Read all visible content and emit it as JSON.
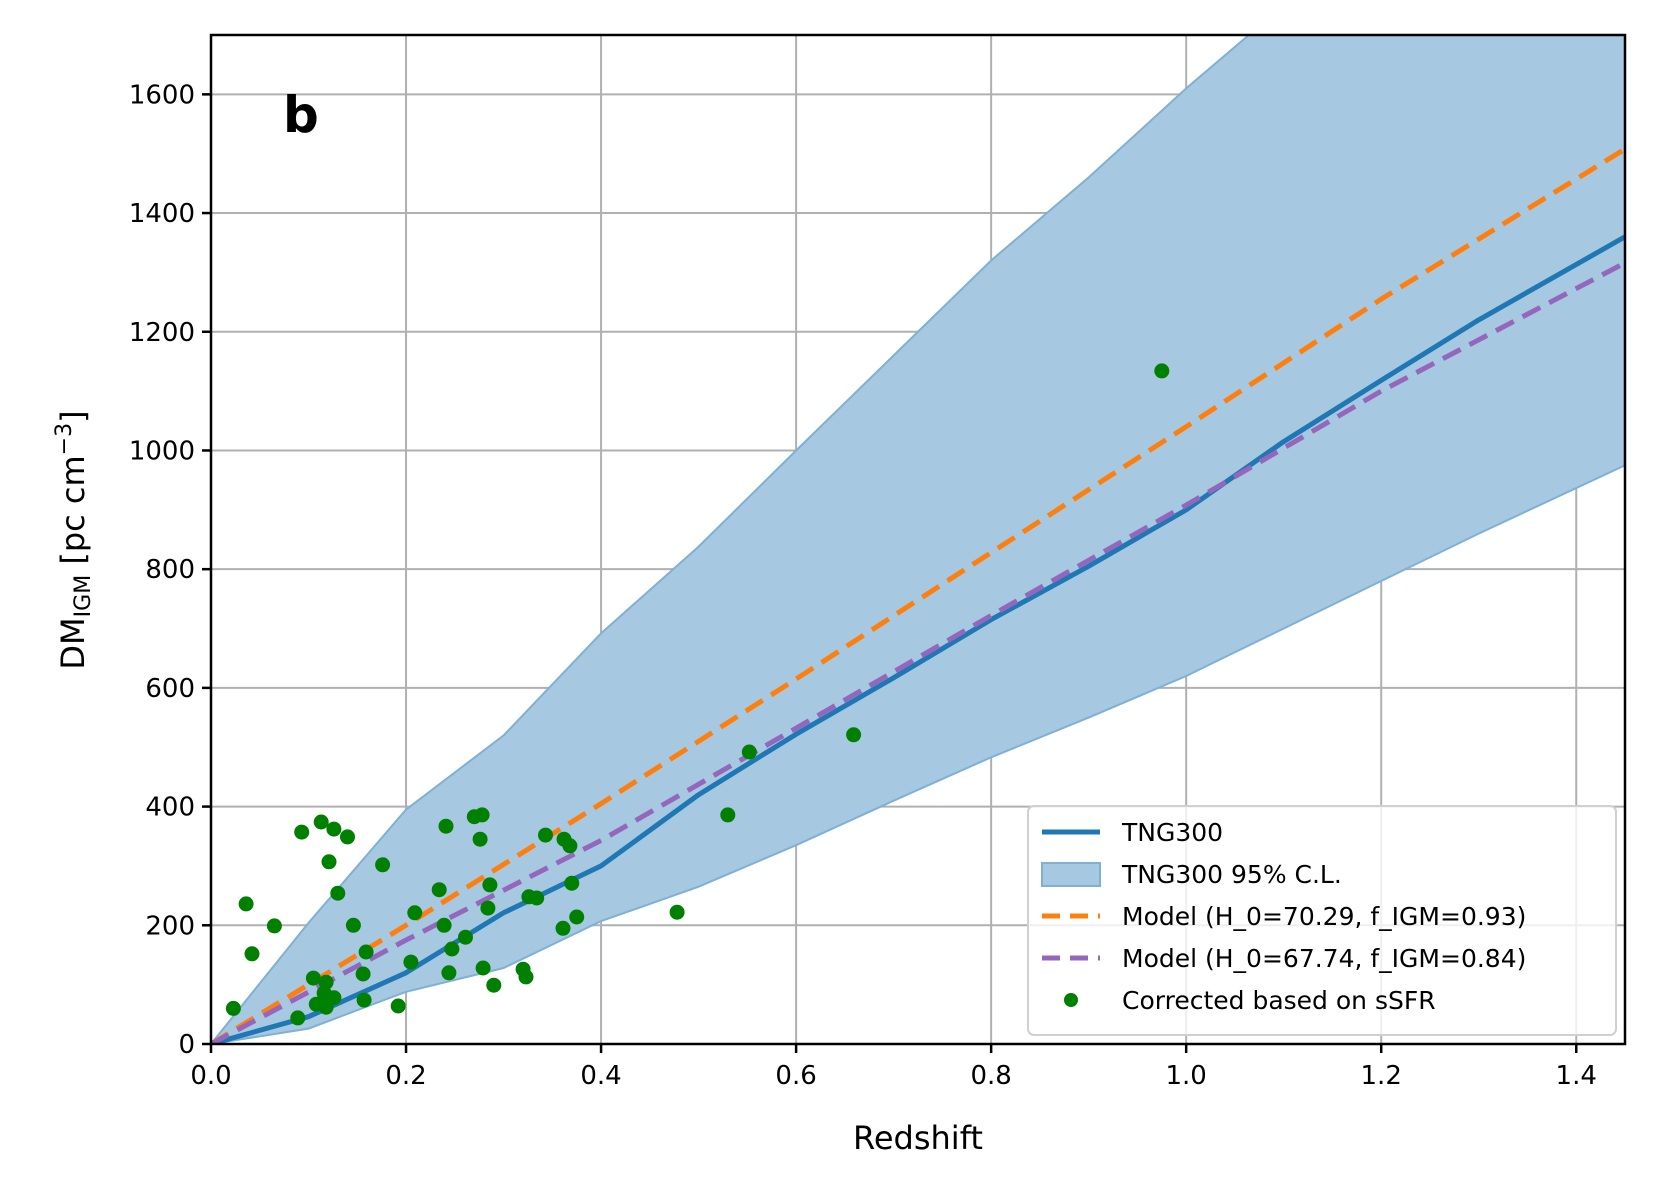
{
  "chart_data": {
    "type": "line",
    "panel_label": "b",
    "title": "",
    "xlabel": "Redshift",
    "ylabel_main": "DM",
    "ylabel_sub": "IGM",
    "ylabel_unit_pre": " [pc cm",
    "ylabel_unit_sup": "−3",
    "ylabel_unit_post": "]",
    "xlim": [
      0,
      1.45
    ],
    "ylim": [
      0,
      1700
    ],
    "xticks": [
      0.0,
      0.2,
      0.4,
      0.6,
      0.8,
      1.0,
      1.2,
      1.4
    ],
    "xtick_labels": [
      "0.0",
      "0.2",
      "0.4",
      "0.6",
      "0.8",
      "1.0",
      "1.2",
      "1.4"
    ],
    "yticks": [
      0,
      200,
      400,
      600,
      800,
      1000,
      1200,
      1400,
      1600
    ],
    "ytick_labels": [
      "0",
      "200",
      "400",
      "600",
      "800",
      "1000",
      "1200",
      "1400",
      "1600"
    ],
    "grid": true,
    "legend_position": "bottom-right",
    "colors": {
      "tng": "#1f77b4",
      "band": "#a6c8e0",
      "band_edge": "#7fb0d6",
      "model1": "#ff7f0e",
      "model2": "#9467bd",
      "points": "#008000"
    },
    "series": [
      {
        "name": "TNG300",
        "kind": "line",
        "x": [
          0,
          0.1,
          0.2,
          0.3,
          0.4,
          0.5,
          0.6,
          0.7,
          0.8,
          0.9,
          1.0,
          1.1,
          1.2,
          1.3,
          1.45
        ],
        "y": [
          0,
          46,
          120,
          221,
          300,
          420,
          522,
          617,
          715,
          805,
          900,
          1015,
          1118,
          1220,
          1360
        ]
      },
      {
        "name": "TNG300 95% C.L.",
        "kind": "band",
        "x": [
          0,
          0.1,
          0.2,
          0.3,
          0.4,
          0.5,
          0.6,
          0.7,
          0.8,
          0.9,
          1.0,
          1.1,
          1.2,
          1.3,
          1.45
        ],
        "lower": [
          0,
          26,
          88,
          128,
          207,
          265,
          335,
          410,
          483,
          550,
          620,
          700,
          780,
          860,
          975
        ],
        "upper": [
          0,
          204,
          395,
          520,
          692,
          838,
          1000,
          1160,
          1320,
          1460,
          1610,
          1750,
          1900,
          2050,
          2250
        ]
      },
      {
        "name": "Model (H_0=70.29, f_IGM=0.93)",
        "kind": "dashed",
        "x": [
          0,
          0.2,
          0.4,
          0.6,
          0.8,
          1.0,
          1.2,
          1.45
        ],
        "y": [
          0,
          200,
          405,
          615,
          828,
          1040,
          1255,
          1508
        ]
      },
      {
        "name": "Model (H_0=67.74, f_IGM=0.84)",
        "kind": "dashed",
        "x": [
          0,
          0.2,
          0.4,
          0.6,
          0.8,
          1.0,
          1.2,
          1.45
        ],
        "y": [
          0,
          175,
          343,
          532,
          722,
          908,
          1100,
          1316
        ]
      },
      {
        "name": "Corrected based on sSFR",
        "kind": "scatter",
        "points": [
          [
            0.023,
            60
          ],
          [
            0.042,
            152
          ],
          [
            0.036,
            236
          ],
          [
            0.065,
            199
          ],
          [
            0.093,
            357
          ],
          [
            0.113,
            374
          ],
          [
            0.126,
            362
          ],
          [
            0.14,
            349
          ],
          [
            0.121,
            307
          ],
          [
            0.13,
            254
          ],
          [
            0.176,
            302
          ],
          [
            0.146,
            200
          ],
          [
            0.159,
            155
          ],
          [
            0.105,
            111
          ],
          [
            0.118,
            104
          ],
          [
            0.156,
            118
          ],
          [
            0.116,
            86
          ],
          [
            0.126,
            78
          ],
          [
            0.108,
            67
          ],
          [
            0.118,
            62
          ],
          [
            0.157,
            74
          ],
          [
            0.089,
            44
          ],
          [
            0.192,
            64
          ],
          [
            0.205,
            138
          ],
          [
            0.209,
            221
          ],
          [
            0.241,
            367
          ],
          [
            0.27,
            383
          ],
          [
            0.278,
            386
          ],
          [
            0.276,
            345
          ],
          [
            0.343,
            352
          ],
          [
            0.362,
            345
          ],
          [
            0.368,
            334
          ],
          [
            0.234,
            260
          ],
          [
            0.286,
            268
          ],
          [
            0.239,
            200
          ],
          [
            0.284,
            229
          ],
          [
            0.326,
            248
          ],
          [
            0.334,
            246
          ],
          [
            0.37,
            271
          ],
          [
            0.261,
            180
          ],
          [
            0.247,
            160
          ],
          [
            0.244,
            120
          ],
          [
            0.279,
            128
          ],
          [
            0.29,
            99
          ],
          [
            0.32,
            126
          ],
          [
            0.323,
            113
          ],
          [
            0.361,
            195
          ],
          [
            0.375,
            214
          ],
          [
            0.478,
            222
          ],
          [
            0.53,
            386
          ],
          [
            0.552,
            492
          ],
          [
            0.659,
            521
          ],
          [
            0.975,
            1134
          ]
        ]
      }
    ],
    "legend": [
      {
        "label": "TNG300",
        "kind": "line"
      },
      {
        "label": "TNG300 95% C.L.",
        "kind": "band"
      },
      {
        "label": "Model (H_0=70.29, f_IGM=0.93)",
        "kind": "dashed-orange"
      },
      {
        "label": "Model (H_0=67.74, f_IGM=0.84)",
        "kind": "dashed-purple"
      },
      {
        "label": "Corrected based on sSFR",
        "kind": "scatter"
      }
    ]
  }
}
